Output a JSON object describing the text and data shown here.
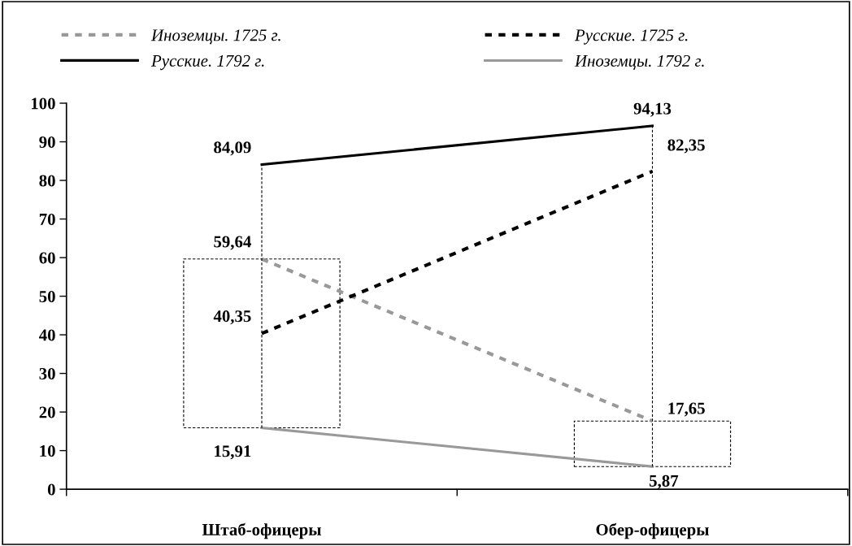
{
  "chart_data": {
    "type": "line",
    "categories": [
      "Штаб-офицеры",
      "Обер-офицеры"
    ],
    "series": [
      {
        "name": "Иноземцы. 1725 г.",
        "color": "#999999",
        "values": [
          59.64,
          17.65
        ],
        "value_labels": [
          "59,64",
          "17,65"
        ],
        "line_style": "dotted"
      },
      {
        "name": "Русские. 1725 г.",
        "color": "#000000",
        "values": [
          40.35,
          82.35
        ],
        "value_labels": [
          "40,35",
          "82,35"
        ],
        "line_style": "dotted"
      },
      {
        "name": "Русские. 1792 г.",
        "color": "#000000",
        "values": [
          84.09,
          94.13
        ],
        "value_labels": [
          "84,09",
          "94,13"
        ],
        "line_style": "solid"
      },
      {
        "name": "Иноземцы. 1792 г.",
        "color": "#999999",
        "values": [
          15.91,
          5.87
        ],
        "value_labels": [
          "15,91",
          "5,87"
        ],
        "line_style": "solid"
      }
    ],
    "ylim": [
      0,
      100
    ],
    "yticks": [
      0,
      10,
      20,
      30,
      40,
      50,
      60,
      70,
      80,
      90,
      100
    ],
    "legend": "top",
    "marker": "none"
  }
}
